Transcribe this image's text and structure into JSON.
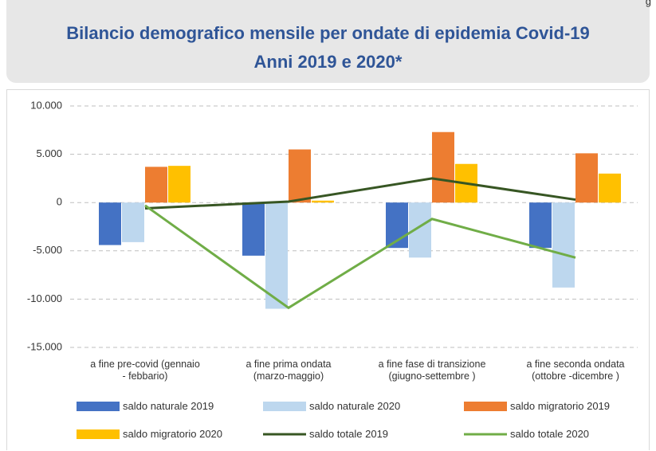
{
  "corner_text": "g",
  "chart_data": {
    "type": "bar",
    "title": "Bilancio  demografico mensile per ondate di epidemia Covid-19\nAnni 2019 e 2020*",
    "categories": [
      "a fine pre-covid (gennaio\n- febbario)",
      "a fine prima ondata\n(marzo-maggio)",
      "a fine fase di transizione\n(giugno-settembre )",
      "a fine seconda ondata\n(ottobre -dicembre )"
    ],
    "series": [
      {
        "name": "saldo naturale 2019",
        "type": "bar",
        "color": "#4472c4",
        "values": [
          -4400,
          -5500,
          -4700,
          -4700
        ]
      },
      {
        "name": "saldo naturale 2020",
        "type": "bar",
        "color": "#bdd7ee",
        "values": [
          -4100,
          -11000,
          -5700,
          -8800
        ]
      },
      {
        "name": "saldo migratorio 2019",
        "type": "bar",
        "color": "#ed7d31",
        "values": [
          3700,
          5500,
          7300,
          5100
        ]
      },
      {
        "name": "saldo migratorio 2020",
        "type": "bar",
        "color": "#ffc000",
        "values": [
          3800,
          200,
          4000,
          3000
        ]
      },
      {
        "name": "saldo totale 2019",
        "type": "line",
        "color": "#375623",
        "values": [
          -600,
          100,
          2500,
          300
        ]
      },
      {
        "name": "saldo totale 2020",
        "type": "line",
        "color": "#70ad47",
        "values": [
          -300,
          -10900,
          -1700,
          -5700
        ]
      }
    ],
    "ylim": [
      -15000,
      10000
    ],
    "yticks": [
      {
        "value": -15000,
        "label": "-15.000"
      },
      {
        "value": -10000,
        "label": "-10.000"
      },
      {
        "value": -5000,
        "label": "-5.000"
      },
      0,
      {
        "value": 5000,
        "label": "5.000"
      },
      {
        "value": 10000,
        "label": "10.000"
      }
    ],
    "grid": true
  }
}
